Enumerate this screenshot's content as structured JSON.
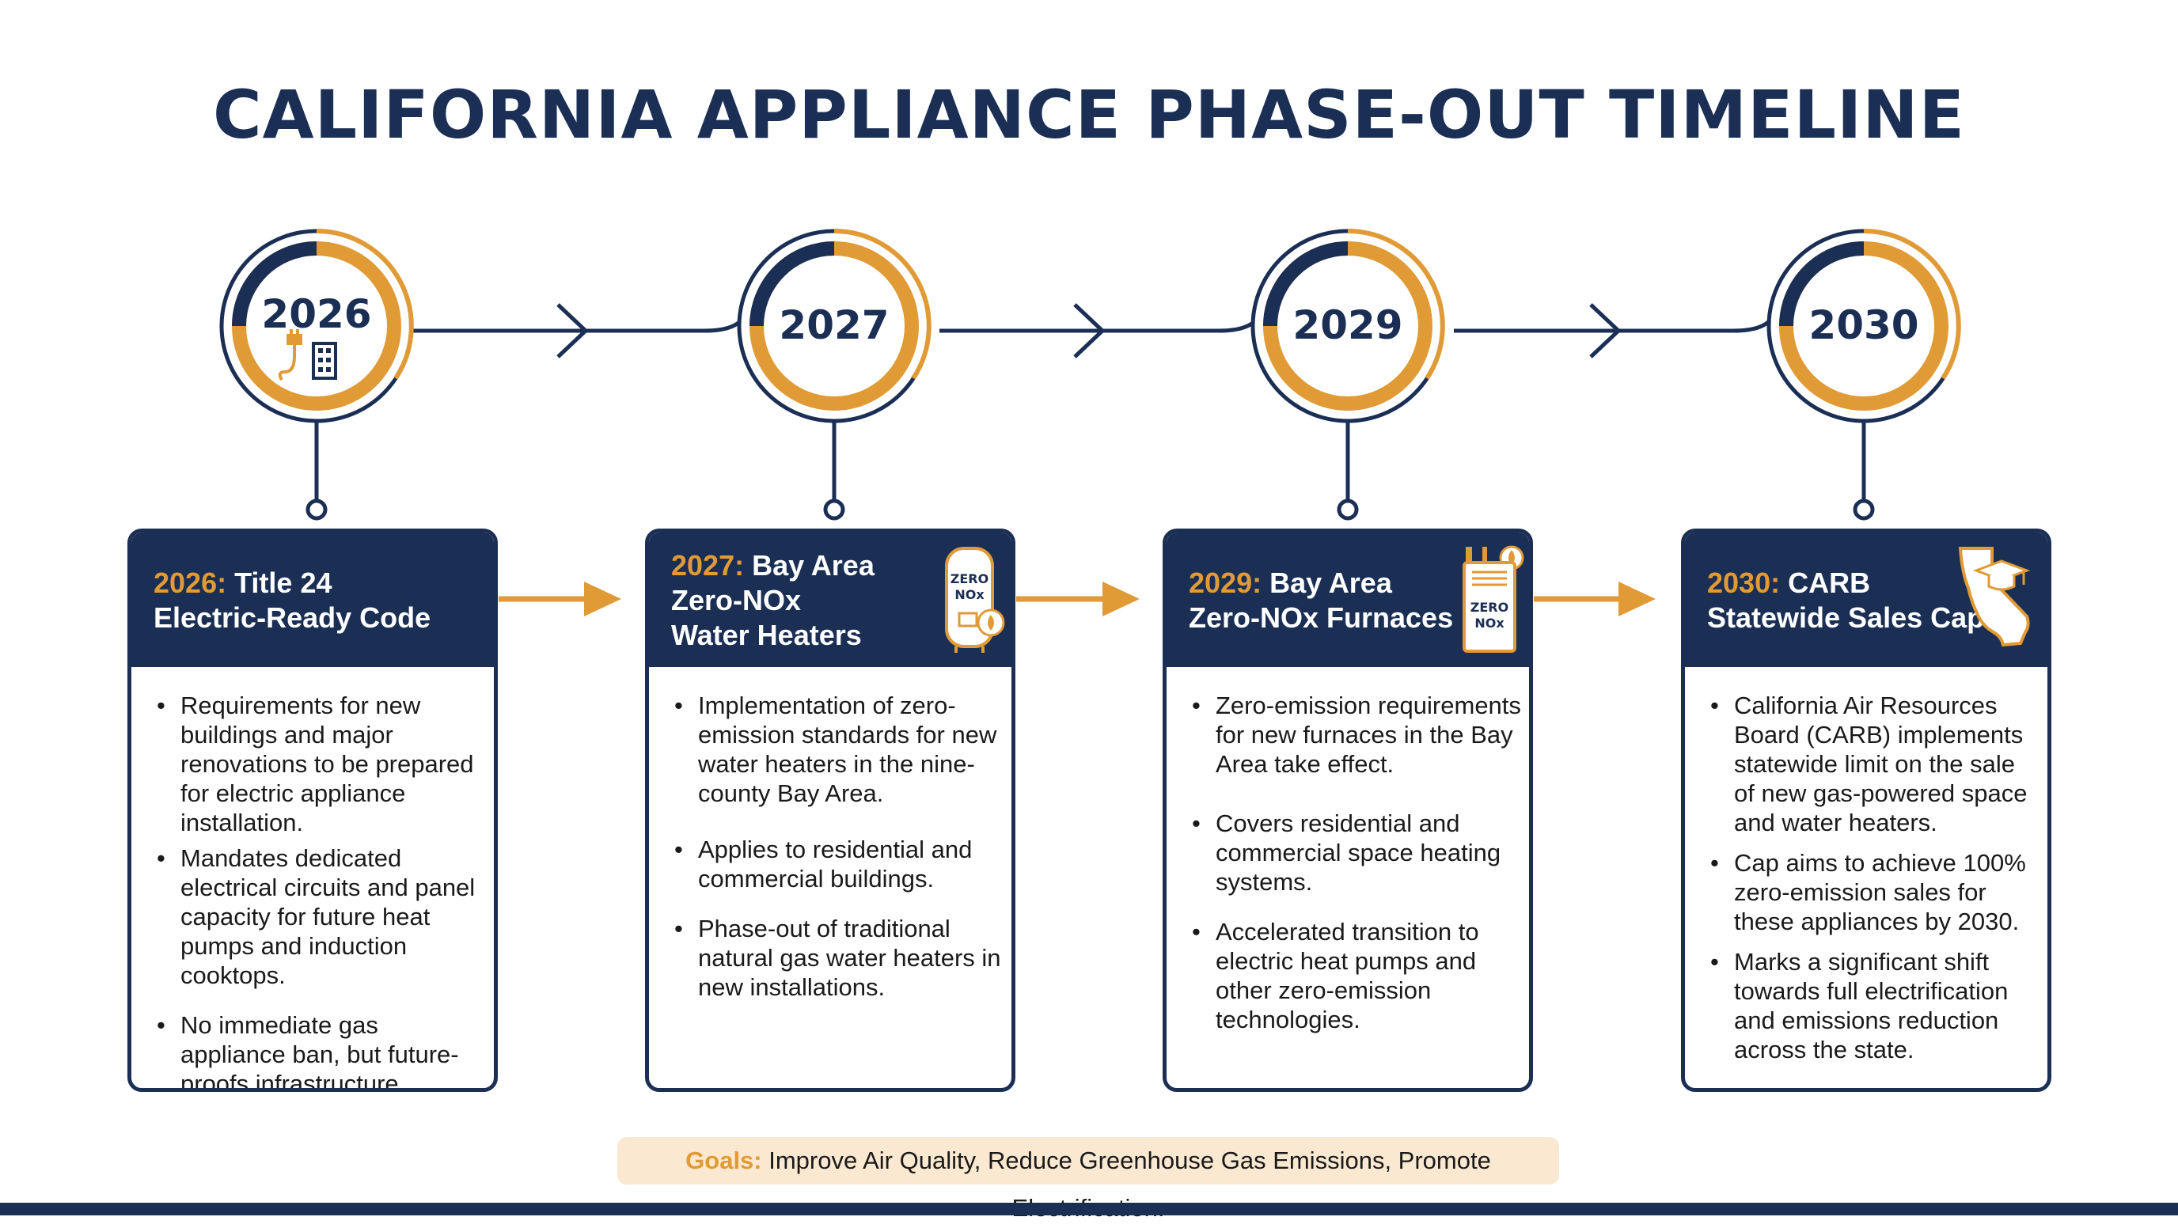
{
  "title": "CALIFORNIA APPLIANCE PHASE-OUT TIMELINE",
  "colors": {
    "navy": "#1b2f55",
    "orange": "#e09a36",
    "goals_bg": "#fbe8d0"
  },
  "milestones": [
    {
      "year": "2026",
      "card_year": "2026:",
      "card_title_lines": [
        "Title 24",
        "Electric-Ready Code"
      ],
      "icon": "plug-building-icon",
      "bullets": [
        "Requirements for new buildings and major renovations to be prepared for electric appliance installation.",
        "Mandates dedicated electrical circuits and panel capacity for future heat pumps and induction cooktops.",
        "No immediate gas appliance ban, but future-proofs infrastructure."
      ]
    },
    {
      "year": "2027",
      "card_year": "2027:",
      "card_title_lines": [
        "Bay Area",
        "Zero-NOx",
        "Water Heaters"
      ],
      "icon": "water-heater-icon",
      "icon_text": [
        "ZERO",
        "NOx"
      ],
      "bullets": [
        "Implementation of zero-emission standards for new water heaters in the nine-county Bay Area.",
        "Applies to residential and commercial buildings.",
        "Phase-out of traditional natural gas water heaters in new installations."
      ]
    },
    {
      "year": "2029",
      "card_year": "2029:",
      "card_title_lines": [
        "Bay Area",
        "Zero-NOx Furnaces"
      ],
      "icon": "furnace-icon",
      "icon_text": [
        "ZERO",
        "NOx"
      ],
      "bullets": [
        "Zero-emission requirements for new furnaces in the Bay Area take effect.",
        "Covers residential and commercial space heating systems.",
        "Accelerated transition to electric heat pumps and other zero-emission technologies."
      ]
    },
    {
      "year": "2030",
      "card_year": "2030:",
      "card_title_lines": [
        "CARB",
        "Statewide Sales Cap"
      ],
      "icon": "california-map-icon",
      "bullets": [
        "California Air Resources Board (CARB) implements statewide limit on the sale of new gas-powered space and water heaters.",
        "Cap aims to achieve 100% zero-emission sales for these appliances by 2030.",
        "Marks a significant shift towards full electrification and emissions reduction across the state."
      ]
    }
  ],
  "goals": {
    "label": "Goals:",
    "text": " Improve Air Quality, Reduce Greenhouse Gas Emissions, Promote Electrification."
  }
}
